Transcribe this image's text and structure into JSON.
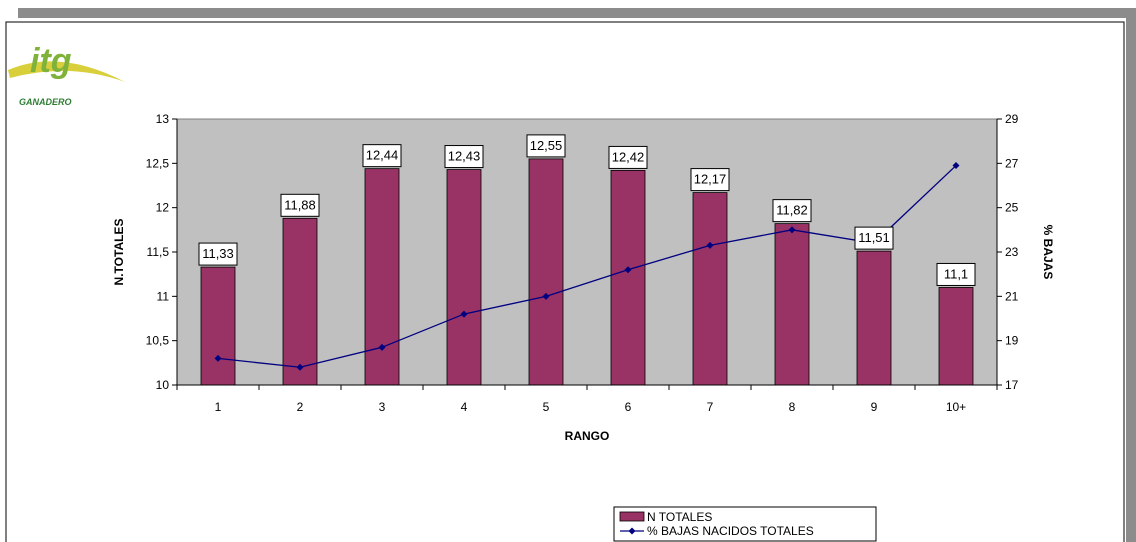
{
  "logo": {
    "mark": "itg",
    "subtitle": "GANADERO",
    "colors": {
      "mark": "#7fb23a",
      "swoosh": "#d9cf3a",
      "text": "#2e7d32"
    }
  },
  "colors": {
    "frame_shadow": "#8c8c8c",
    "plot_bg": "#c0c0c0",
    "bar_fill": "#993366",
    "line": "#000080"
  },
  "chart_data": {
    "type": "bar",
    "categories": [
      "1",
      "2",
      "3",
      "4",
      "5",
      "6",
      "7",
      "8",
      "9",
      "10+"
    ],
    "xlabel": "RANGO",
    "ylabel": "N.TOTALES",
    "y2label": "% BAJAS",
    "ylim": [
      10,
      13
    ],
    "y2lim": [
      17,
      29
    ],
    "yticks": [
      "10",
      "10,5",
      "11",
      "11,5",
      "12",
      "12,5",
      "13"
    ],
    "y2ticks": [
      "17",
      "19",
      "21",
      "23",
      "25",
      "27",
      "29"
    ],
    "grid": false,
    "legend_position": "bottom",
    "series": [
      {
        "name": "N TOTALES",
        "kind": "bar",
        "axis": "left",
        "values": [
          11.33,
          11.88,
          12.44,
          12.43,
          12.55,
          12.42,
          12.17,
          11.82,
          11.51,
          11.1
        ],
        "labels": [
          "11,33",
          "11,88",
          "12,44",
          "12,43",
          "12,55",
          "12,42",
          "12,17",
          "11,82",
          "11,51",
          "11,1"
        ]
      },
      {
        "name": "% BAJAS NACIDOS TOTALES",
        "kind": "line",
        "axis": "right",
        "values": [
          18.2,
          17.8,
          18.7,
          20.2,
          21.0,
          22.2,
          23.3,
          24.0,
          23.4,
          26.9
        ]
      }
    ]
  }
}
